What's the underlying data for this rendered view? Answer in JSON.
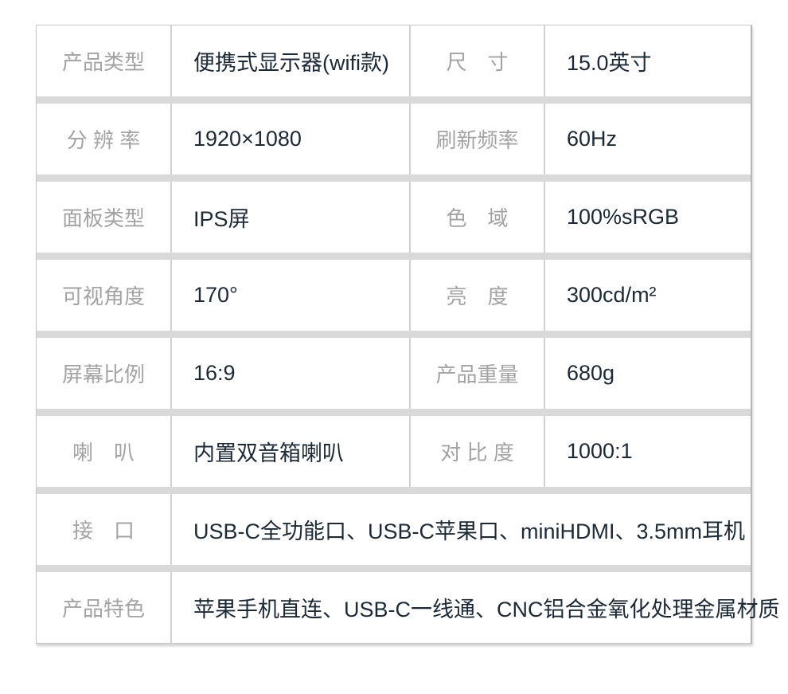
{
  "colors": {
    "background": "#ffffff",
    "label_text": "#a3a3a3",
    "value_text": "#1c2a38",
    "row_separator_band": "#d9d9d9",
    "column_divider": "#d2d2d2",
    "outer_border": "#c9c9c9"
  },
  "table": {
    "rows": [
      {
        "label1": "产品类型",
        "value1": "便携式显示器(wifi款)",
        "label2": "尺　寸",
        "value2": "15.0英寸"
      },
      {
        "label1": "分 辨 率",
        "value1": "1920×1080",
        "label2": "刷新频率",
        "value2": "60Hz"
      },
      {
        "label1": "面板类型",
        "value1": "IPS屏",
        "label2": "色　域",
        "value2": "100%sRGB"
      },
      {
        "label1": "可视角度",
        "value1": "170°",
        "label2": "亮　度",
        "value2": "300cd/m²"
      },
      {
        "label1": "屏幕比例",
        "value1": "16:9",
        "label2": "产品重量",
        "value2": "680g"
      },
      {
        "label1": "喇　叭",
        "value1": "内置双音箱喇叭",
        "label2": "对 比 度",
        "value2": "1000:1"
      },
      {
        "label1": "接　口",
        "value1": "USB-C全功能口、USB-C苹果口、miniHDMI、3.5mm耳机"
      },
      {
        "label1": "产品特色",
        "value1": "苹果手机直连、USB-C一线通、CNC铝合金氧化处理金属材质"
      }
    ]
  }
}
